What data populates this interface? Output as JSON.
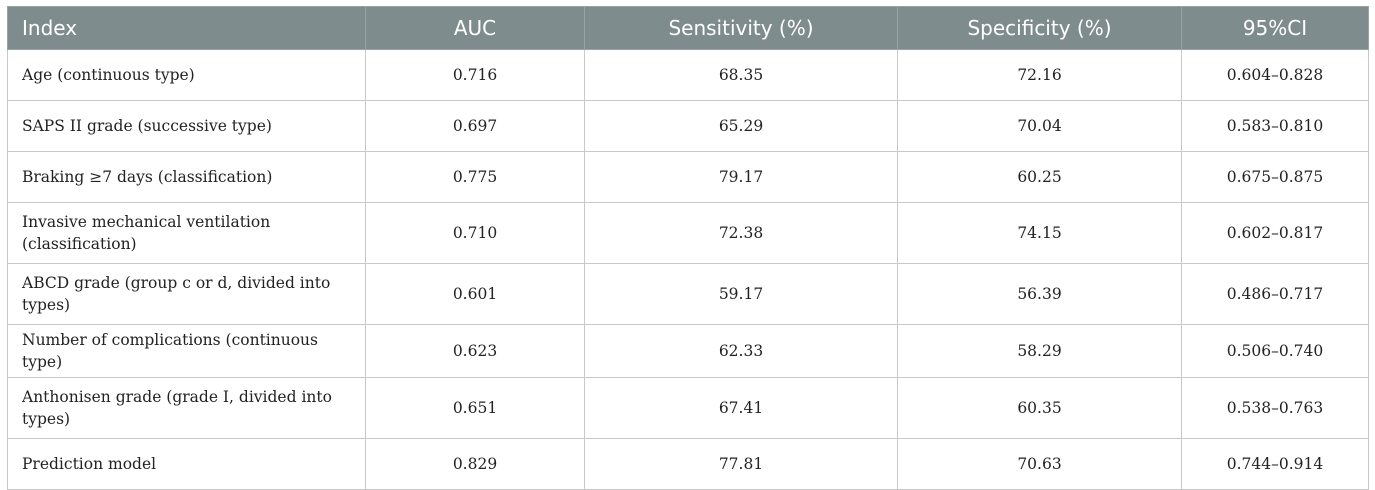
{
  "table": {
    "headers": [
      "Index",
      "AUC",
      "Sensitivity (%)",
      "Specificity (%)",
      "95%CI"
    ],
    "rows": [
      {
        "index": "Age (continuous type)",
        "auc": "0.716",
        "sensitivity": "68.35",
        "specificity": "72.16",
        "ci": "0.604–0.828"
      },
      {
        "index": "SAPS II grade (successive type)",
        "auc": "0.697",
        "sensitivity": "65.29",
        "specificity": "70.04",
        "ci": "0.583–0.810"
      },
      {
        "index": "Braking ≥7 days (classification)",
        "auc": "0.775",
        "sensitivity": "79.17",
        "specificity": "60.25",
        "ci": "0.675–0.875"
      },
      {
        "index": "Invasive mechanical ventilation (classification)",
        "auc": "0.710",
        "sensitivity": "72.38",
        "specificity": "74.15",
        "ci": "0.602–0.817"
      },
      {
        "index": "ABCD grade (group c or d, divided into types)",
        "auc": "0.601",
        "sensitivity": "59.17",
        "specificity": "56.39",
        "ci": "0.486–0.717"
      },
      {
        "index": "Number of complications (continuous type)",
        "auc": "0.623",
        "sensitivity": "62.33",
        "specificity": "58.29",
        "ci": "0.506–0.740"
      },
      {
        "index": "Anthonisen grade (grade I, divided into types)",
        "auc": "0.651",
        "sensitivity": "67.41",
        "specificity": "60.35",
        "ci": "0.538–0.763"
      },
      {
        "index": "Prediction model",
        "auc": "0.829",
        "sensitivity": "77.81",
        "specificity": "70.63",
        "ci": "0.744–0.914"
      }
    ]
  }
}
